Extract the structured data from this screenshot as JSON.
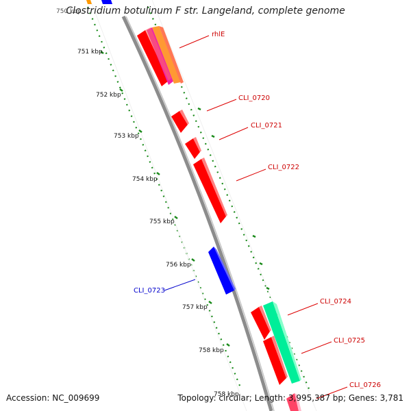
{
  "title": "Clostridium botulinum F str. Langeland, complete genome",
  "footer": {
    "accession": "Accession: NC_009699",
    "stats": "Topology: circular; Length: 3,995,387 bp; Genes: 3,781"
  },
  "colors": {
    "backbone": "#8c8c8c",
    "forward_gene": "#ff0000",
    "reverse_gene": "#0000ff",
    "ticks": "#1a8a1a",
    "highlight": "#00ee99",
    "label_forward": "#cc0000",
    "label_reverse": "#0000cc"
  },
  "ticks": [
    {
      "label": "750 kbp"
    },
    {
      "label": "751 kbp"
    },
    {
      "label": "752 kbp"
    },
    {
      "label": "753 kbp"
    },
    {
      "label": "754 kbp"
    },
    {
      "label": "755 kbp"
    },
    {
      "label": "756 kbp"
    },
    {
      "label": "757 kbp"
    },
    {
      "label": "758 kbp"
    },
    {
      "label": "758 kbp"
    }
  ],
  "genes": [
    {
      "name": "rhlE",
      "strand": "forward"
    },
    {
      "name": "CLI_0720",
      "strand": "forward"
    },
    {
      "name": "CLI_0721",
      "strand": "forward"
    },
    {
      "name": "CLI_0722",
      "strand": "forward"
    },
    {
      "name": "CLI_0723",
      "strand": "reverse"
    },
    {
      "name": "CLI_0724",
      "strand": "forward"
    },
    {
      "name": "CLI_0725",
      "strand": "forward"
    },
    {
      "name": "CLI_0726",
      "strand": "forward"
    }
  ]
}
